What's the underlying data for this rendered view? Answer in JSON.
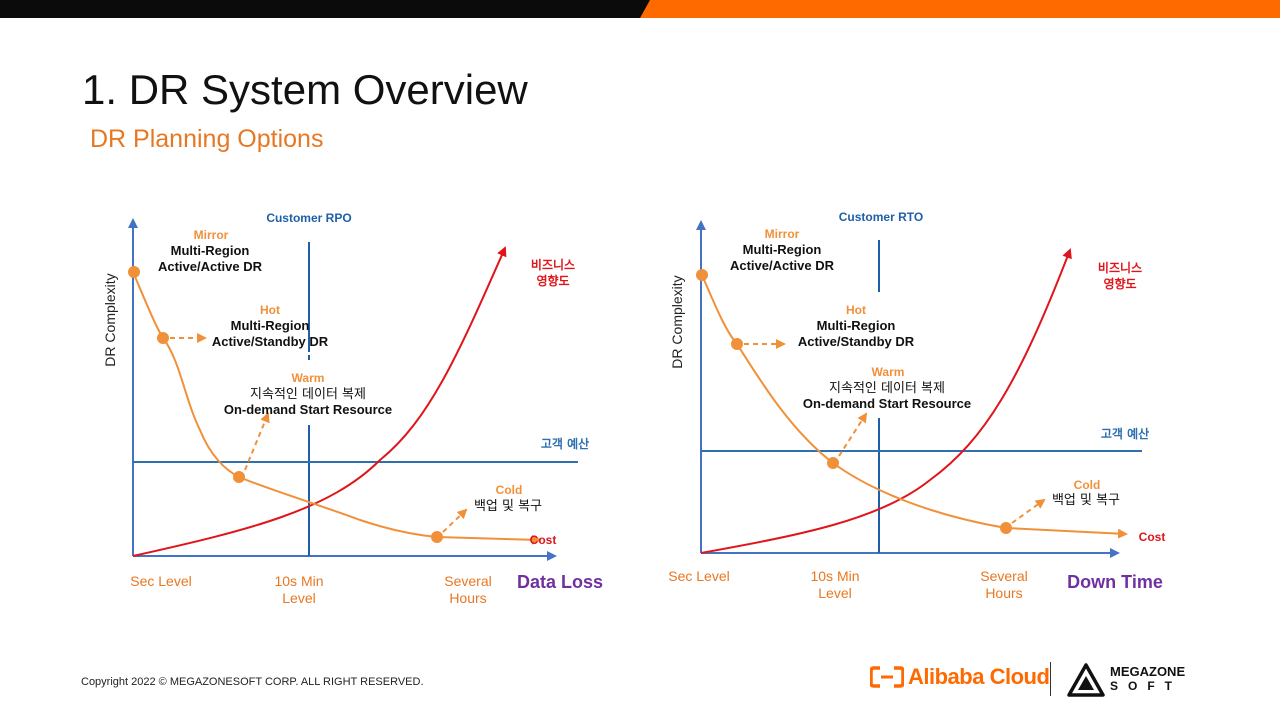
{
  "header": {
    "title": "1. DR System Overview",
    "subtitle": "DR Planning Options"
  },
  "left_chart": {
    "customer_label": "Customer  RPO",
    "y_axis_label": "DR Complexity",
    "x_axis_title": "Data Loss",
    "impact_line1": "비즈니스",
    "impact_line2": "영향도",
    "budget_label": "고객 예산",
    "cost_label": "Cost",
    "x_ticks": [
      "Sec Level",
      "10s Min",
      "Level",
      "Several",
      "Hours"
    ],
    "options": {
      "mirror": {
        "tier": "Mirror",
        "line1": "Multi-Region",
        "line2": "Active/Active  DR"
      },
      "hot": {
        "tier": "Hot",
        "line1": "Multi-Region",
        "line2": "Active/Standby  DR"
      },
      "warm": {
        "tier": "Warm",
        "line1": "지속적인  데이터  복제",
        "line2": "On-demand  Start  Resource"
      },
      "cold": {
        "tier": "Cold",
        "line1": "백업  및  복구"
      }
    }
  },
  "right_chart": {
    "customer_label": "Customer  RTO",
    "y_axis_label": "DR Complexity",
    "x_axis_title": "Down Time",
    "impact_line1": "비즈니스",
    "impact_line2": "영향도",
    "budget_label": "고객 예산",
    "cost_label": "Cost",
    "x_ticks": [
      "Sec Level",
      "10s Min",
      "Level",
      "Several",
      "Hours"
    ],
    "options": {
      "mirror": {
        "tier": "Mirror",
        "line1": "Multi-Region",
        "line2": "Active/Active  DR"
      },
      "hot": {
        "tier": "Hot",
        "line1": "Multi-Region",
        "line2": "Active/Standby  DR"
      },
      "warm": {
        "tier": "Warm",
        "line1": "지속적인  데이터  복제",
        "line2": "On-demand  Start  Resource"
      },
      "cold": {
        "tier": "Cold",
        "line1": "백업  및  복구"
      }
    }
  },
  "footer": {
    "copyright": "Copyright 2022 © MEGAZONESOFT  CORP. ALL RIGHT RESERVED.",
    "alibaba_logo_text": "Alibaba Cloud",
    "megazone_line1": "MEGAZONE",
    "megazone_line2": "SOFT"
  },
  "colors": {
    "axis": "#4472c4",
    "budget_line": "#2e6fb0",
    "rpo_line": "#1f5fa8",
    "cost_curve": "#f0913a",
    "impact_curve": "#e0151b",
    "tier_label": "#f0913a",
    "x_title": "#7030a0",
    "brand_orange": "#ff6a00"
  }
}
